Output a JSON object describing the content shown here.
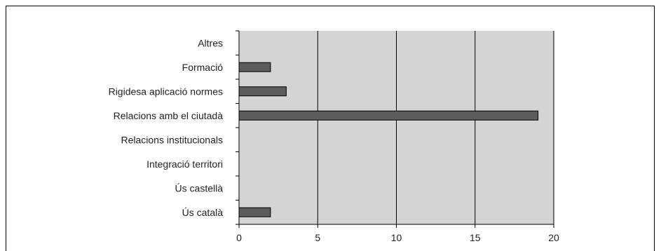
{
  "chart_data": {
    "type": "bar",
    "orientation": "horizontal",
    "categories": [
      "Altres",
      "Formació",
      "Rigidesa aplicació normes",
      "Relacions amb el ciutadà",
      "Relacions institucionals",
      "Integració territori",
      "Ús castellà",
      "Ús català"
    ],
    "values": [
      0,
      2,
      3,
      19,
      0,
      0,
      0,
      2
    ],
    "xlim": [
      0,
      20
    ],
    "xticks": [
      0,
      5,
      10,
      15,
      20
    ],
    "grid": "vertical",
    "legend": "none",
    "title": "",
    "xlabel": "",
    "ylabel": "",
    "colors": {
      "plot_background": "#d4d4d4",
      "bar_fill": "#5c5c5c",
      "bar_stroke": "#000000",
      "gridline": "#000000",
      "axis": "#000000"
    }
  }
}
